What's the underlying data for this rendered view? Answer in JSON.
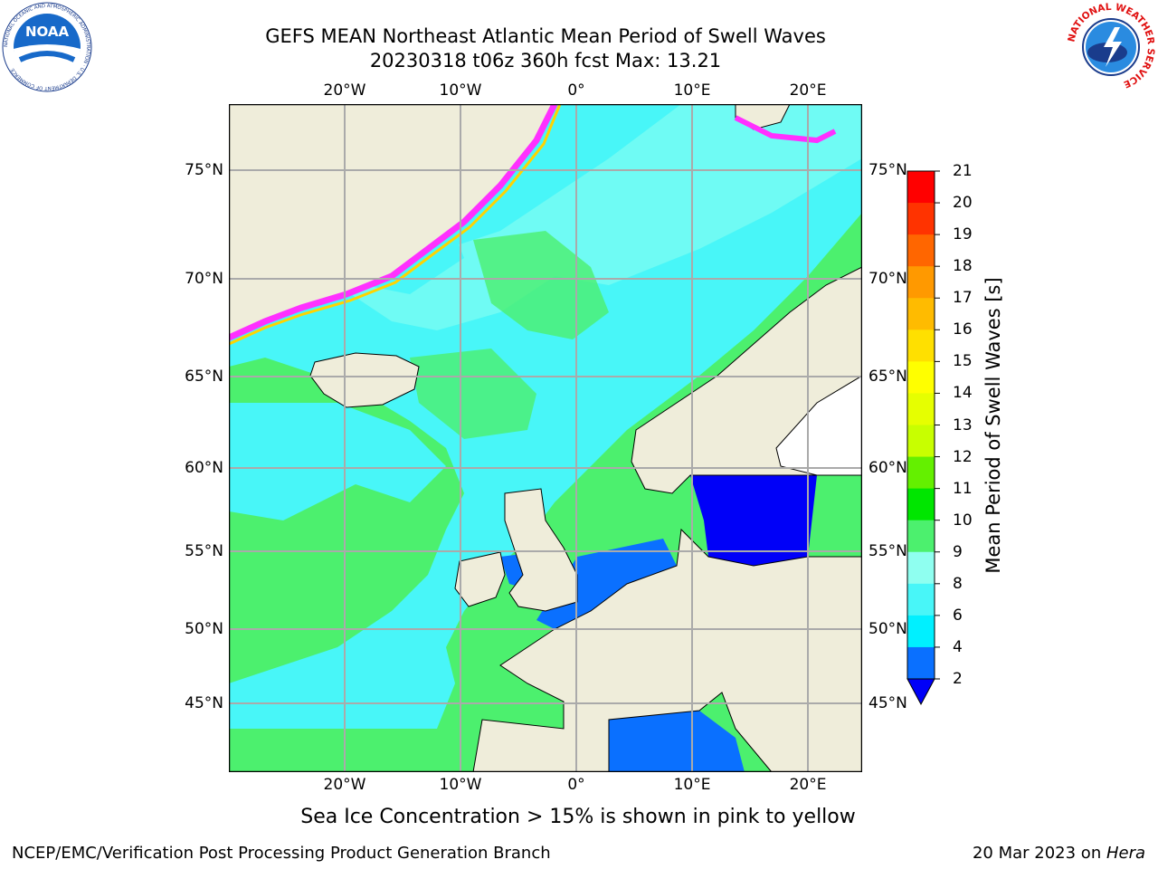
{
  "header": {
    "title_line1": "GEFS MEAN Northeast Atlantic Mean Period of Swell Waves",
    "title_line2": "20230318 t06z 360h fcst   Max: 13.21"
  },
  "logos": {
    "noaa_text": "NOAA",
    "noaa_ring_text": "NATIONAL OCEANIC AND ATMOSPHERIC ADMINISTRATION · U.S. DEPARTMENT OF COMMERCE",
    "nws_ring_text": "NATIONAL WEATHER SERVICE"
  },
  "map": {
    "lon_labels": [
      "20°W",
      "10°W",
      "0°",
      "10°E",
      "20°E"
    ],
    "lat_labels": [
      "75°N",
      "70°N",
      "65°N",
      "60°N",
      "55°N",
      "50°N",
      "45°N"
    ],
    "colors": {
      "land": "#efedda",
      "ocean_green": "#4cf06e",
      "ocean_cyan": "#48f6f8",
      "ocean_light_cyan": "#8ffff0",
      "ocean_blue": "#0a70ff",
      "ocean_dark_blue": "#0000f8",
      "ice_pink": "#ff30ff",
      "ice_yellow": "#ffd300",
      "grid": "#aaaaaa"
    }
  },
  "colorbar": {
    "label": "Mean Period of Swell Waves [s]",
    "ticks": [
      "21",
      "20",
      "19",
      "18",
      "17",
      "16",
      "15",
      "14",
      "13",
      "12",
      "11",
      "10",
      "9",
      "8",
      "6",
      "4",
      "2"
    ],
    "colors": [
      "#ff0000",
      "#ff3300",
      "#ff6600",
      "#ff9900",
      "#ffbb00",
      "#ffe000",
      "#ffff00",
      "#e6ff00",
      "#c8ff00",
      "#64f000",
      "#00e600",
      "#4cf06e",
      "#8ffff0",
      "#48f6f8",
      "#00f0ff",
      "#0a70ff"
    ],
    "under_color": "#0000f8"
  },
  "footer": {
    "note": "Sea Ice Concentration > 15% is shown in pink to yellow",
    "credit": "NCEP/EMC/Verification Post Processing Product Generation Branch",
    "date": "20 Mar 2023 on ",
    "machine": "Hera"
  }
}
